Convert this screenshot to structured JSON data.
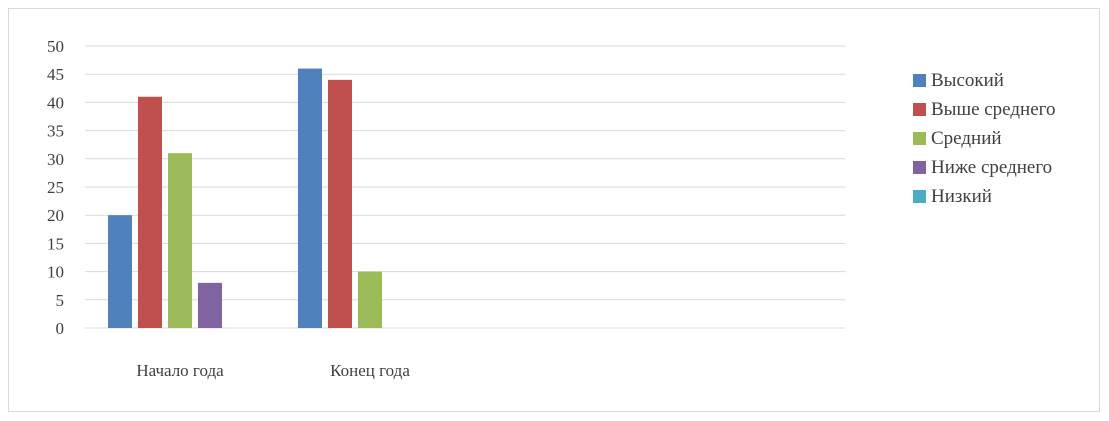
{
  "chart_data": {
    "type": "bar",
    "categories": [
      "Начало года",
      "Конец года",
      "",
      ""
    ],
    "series": [
      {
        "name": "Высокий",
        "color": "#4F81BD",
        "values": [
          20,
          46,
          null,
          null
        ]
      },
      {
        "name": "Выше среднего",
        "color": "#C0504D",
        "values": [
          41,
          44,
          null,
          null
        ]
      },
      {
        "name": "Средний",
        "color": "#9BBB59",
        "values": [
          31,
          10,
          null,
          null
        ]
      },
      {
        "name": "Ниже среднего",
        "color": "#8064A2",
        "values": [
          8,
          0,
          null,
          null
        ]
      },
      {
        "name": "Низкий",
        "color": "#4BACC6",
        "values": [
          0,
          0,
          null,
          null
        ]
      }
    ],
    "ylim": [
      0,
      50
    ],
    "yticks": [
      "0",
      "5",
      "10",
      "15",
      "20",
      "25",
      "30",
      "35",
      "40",
      "45",
      "50"
    ],
    "grid": true,
    "gridColor": "#d9d9d9",
    "legend": "right"
  }
}
